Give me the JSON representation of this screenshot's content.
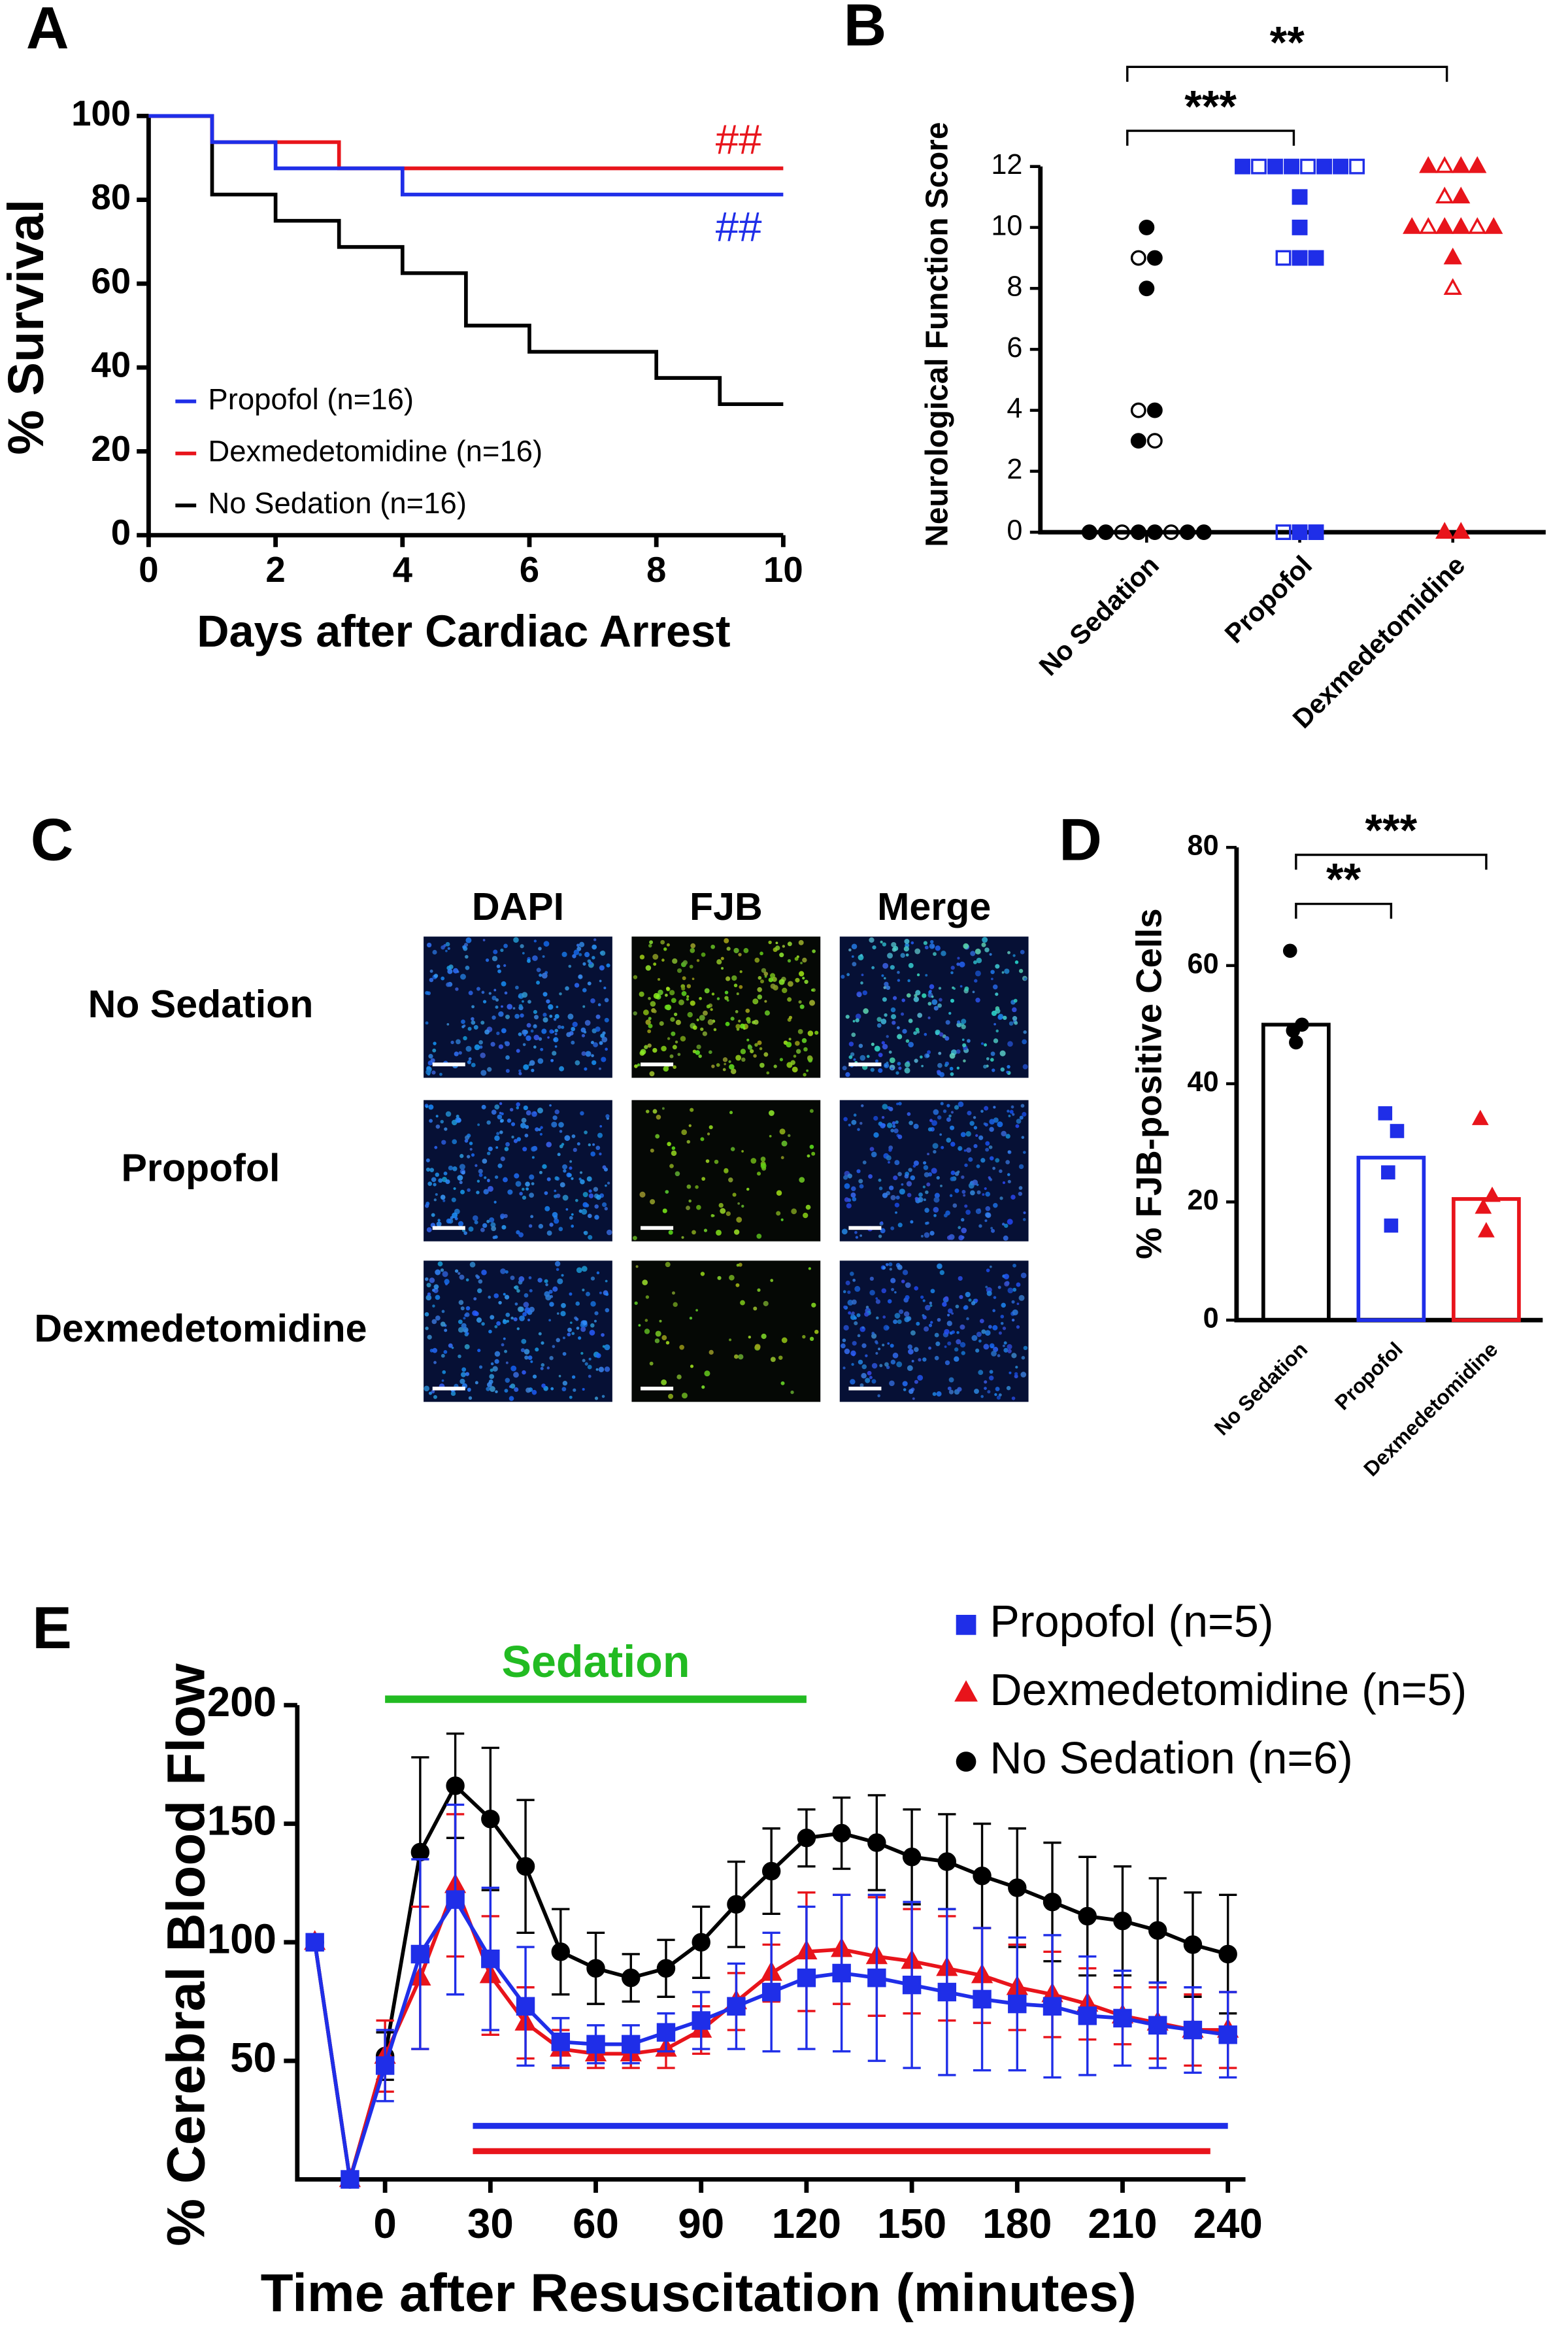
{
  "chart_data": [
    {
      "type": "step",
      "panel_label": "A",
      "x_label": "Days after Cardiac Arrest",
      "y_label": "% Survival",
      "xlim": [
        0,
        10
      ],
      "ylim": [
        0,
        100
      ],
      "xticks": [
        0,
        2,
        4,
        6,
        8,
        10
      ],
      "yticks": [
        0,
        20,
        40,
        60,
        80,
        100
      ],
      "series": [
        {
          "name": "Propofol (n=16)",
          "color": "#1f2ee8",
          "annotation": "##",
          "x": [
            0,
            1,
            2,
            4,
            10
          ],
          "values": [
            100,
            93.75,
            87.5,
            81.25,
            81.25
          ]
        },
        {
          "name": "Dexmedetomidine (n=16)",
          "color": "#e8141b",
          "annotation": "##",
          "x": [
            0,
            1,
            3,
            10
          ],
          "values": [
            100,
            93.75,
            87.5,
            87.5
          ]
        },
        {
          "name": "No Sedation (n=16)",
          "color": "#000000",
          "x": [
            0,
            1,
            2,
            3,
            4,
            5,
            6,
            8,
            9,
            10
          ],
          "values": [
            100,
            81.25,
            75,
            68.75,
            62.5,
            50,
            43.75,
            37.5,
            31.25,
            31.25
          ]
        }
      ]
    },
    {
      "type": "dot",
      "panel_label": "B",
      "y_label": "Neurological Function Score",
      "categories": [
        "No Sedation",
        "Propofol",
        "Dexmedetomidine"
      ],
      "ylim": [
        0,
        12
      ],
      "yticks": [
        0,
        2,
        4,
        6,
        8,
        10,
        12
      ],
      "colors": [
        "#000000",
        "#1f2ee8",
        "#e8141b"
      ],
      "markers": [
        "circle",
        "square",
        "triangle"
      ],
      "values": [
        [
          10,
          9,
          9,
          8,
          4,
          4,
          3,
          3,
          0,
          0,
          0,
          0,
          0,
          0,
          0,
          0
        ],
        [
          12,
          12,
          12,
          12,
          12,
          12,
          12,
          12,
          11,
          10,
          9,
          9,
          9,
          0,
          0,
          0
        ],
        [
          12,
          12,
          12,
          12,
          11,
          11,
          10,
          10,
          10,
          10,
          10,
          10,
          9,
          8,
          0,
          0
        ]
      ],
      "comparisons": [
        {
          "between": [
            "No Sedation",
            "Propofol"
          ],
          "label": "***"
        },
        {
          "between": [
            "No Sedation",
            "Dexmedetomidine"
          ],
          "label": "**"
        }
      ]
    },
    {
      "type": "bar_dot",
      "panel_label": "D",
      "y_label": "% FJB-positive Cells",
      "categories": [
        "No Sedation",
        "Propofol",
        "Dexmedetomidine"
      ],
      "ylim": [
        0,
        80
      ],
      "yticks": [
        0,
        20,
        40,
        60,
        80
      ],
      "colors": [
        "#000000",
        "#1f2ee8",
        "#e8141b"
      ],
      "markers": [
        "circle",
        "square",
        "triangle"
      ],
      "values": [
        50,
        27.5,
        20.5
      ],
      "points": [
        [
          62.5,
          50,
          49,
          47
        ],
        [
          35,
          32,
          25,
          16
        ],
        [
          34,
          21,
          19,
          15
        ]
      ],
      "comparisons": [
        {
          "between": [
            "No Sedation",
            "Propofol"
          ],
          "label": "**"
        },
        {
          "between": [
            "No Sedation",
            "Dexmedetomidine"
          ],
          "label": "***"
        }
      ]
    },
    {
      "type": "line_error",
      "panel_label": "E",
      "x_label": "Time after Resuscitation (minutes)",
      "y_label": "% Cerebral Blood Flow",
      "xlim": [
        -25,
        245
      ],
      "ylim": [
        0,
        200
      ],
      "xticks": [
        0,
        30,
        60,
        90,
        120,
        150,
        180,
        210,
        240
      ],
      "yticks": [
        50,
        100,
        150,
        200
      ],
      "x": [
        -20,
        -10,
        0,
        10,
        20,
        30,
        40,
        50,
        60,
        70,
        80,
        90,
        100,
        110,
        120,
        130,
        140,
        150,
        160,
        170,
        180,
        190,
        200,
        210,
        220,
        230,
        240
      ],
      "series": [
        {
          "name": "Propofol (n=5)",
          "color": "#1f2ee8",
          "marker": "square",
          "values": [
            100,
            0,
            48,
            95,
            118,
            93,
            73,
            58,
            57,
            57,
            62,
            67,
            73,
            79,
            85,
            87,
            85,
            82,
            79,
            76,
            74,
            73,
            69,
            68,
            65,
            63,
            61
          ],
          "errors": [
            null,
            null,
            15,
            40,
            40,
            30,
            25,
            10,
            8,
            8,
            8,
            12,
            18,
            25,
            30,
            33,
            35,
            35,
            35,
            30,
            28,
            30,
            25,
            20,
            18,
            18,
            18
          ]
        },
        {
          "name": "Dexmedetomidine (n=5)",
          "color": "#e8141b",
          "marker": "triangle",
          "values": [
            100,
            0,
            52,
            85,
            124,
            86,
            66,
            55,
            53,
            53,
            55,
            63,
            75,
            87,
            96,
            97,
            94,
            92,
            89,
            86,
            81,
            78,
            74,
            69,
            66,
            63,
            63
          ],
          "errors": [
            null,
            null,
            15,
            30,
            30,
            25,
            15,
            8,
            6,
            6,
            8,
            10,
            12,
            12,
            25,
            23,
            25,
            22,
            22,
            20,
            18,
            18,
            15,
            12,
            15,
            15,
            16
          ]
        },
        {
          "name": "No Sedation (n=6)",
          "color": "#000000",
          "marker": "circle",
          "values": [
            100,
            0,
            52,
            138,
            166,
            152,
            132,
            96,
            89,
            85,
            89,
            100,
            116,
            130,
            144,
            146,
            142,
            136,
            134,
            128,
            123,
            117,
            111,
            109,
            105,
            99,
            95
          ],
          "errors": [
            null,
            null,
            10,
            40,
            22,
            30,
            28,
            18,
            15,
            10,
            12,
            15,
            18,
            18,
            12,
            15,
            20,
            20,
            20,
            22,
            25,
            25,
            25,
            23,
            22,
            22,
            25
          ]
        }
      ],
      "sedation": {
        "label": "Sedation",
        "color": "#22bb22",
        "x": [
          0,
          120
        ]
      },
      "significance_lines": [
        {
          "color": "#1f2ee8",
          "x": [
            25,
            240
          ]
        },
        {
          "color": "#e8141b",
          "x": [
            25,
            235
          ]
        }
      ]
    }
  ],
  "image_panel": {
    "panel_label": "C",
    "columns": [
      "DAPI",
      "FJB",
      "Merge"
    ],
    "rows": [
      "No Sedation",
      "Propofol",
      "Dexmedetomidine"
    ]
  }
}
